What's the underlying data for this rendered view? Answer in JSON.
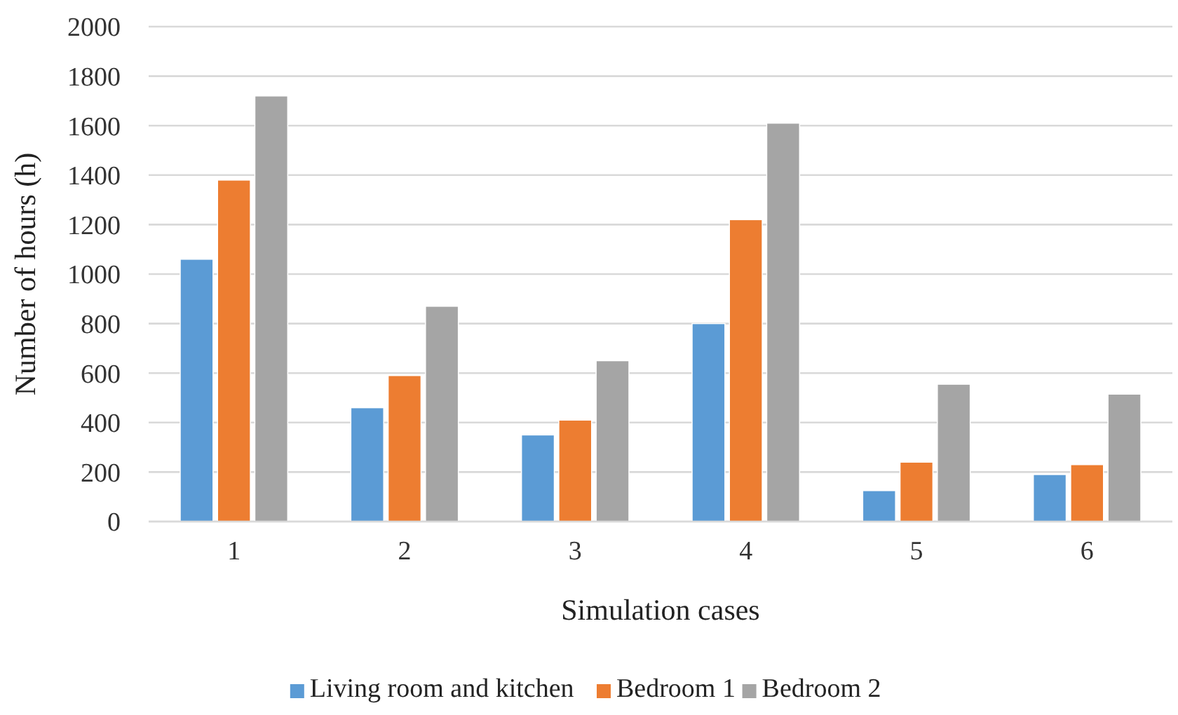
{
  "chart_data": {
    "type": "bar",
    "xlabel": "Simulation cases",
    "ylabel": "Number of hours (h)",
    "categories": [
      "1",
      "2",
      "3",
      "4",
      "5",
      "6"
    ],
    "series": [
      {
        "name": "Living room and kitchen",
        "color": "#5b9bd5",
        "values": [
          1060,
          460,
          350,
          800,
          125,
          190
        ]
      },
      {
        "name": "Bedroom 1",
        "color": "#ed7d31",
        "values": [
          1380,
          590,
          410,
          1220,
          240,
          230
        ]
      },
      {
        "name": "Bedroom 2",
        "color": "#a5a5a5",
        "values": [
          1720,
          870,
          650,
          1610,
          555,
          515
        ]
      }
    ],
    "ylim": [
      0,
      2000
    ],
    "yticks": [
      0,
      200,
      400,
      600,
      800,
      1000,
      1200,
      1400,
      1600,
      1800,
      2000
    ],
    "grid": "y",
    "legend": "bottom"
  }
}
